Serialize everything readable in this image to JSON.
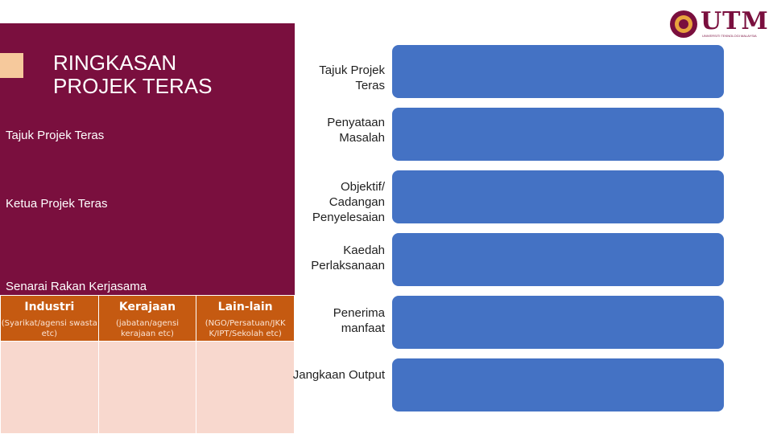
{
  "slide": {
    "title_line1": "RINGKASAN",
    "title_line2": "PROJEK TERAS",
    "project_title_label": "Tajuk Projek Teras",
    "project_lead_label": "Ketua Projek Teras",
    "partners_label": "Senarai Rakan Kerjasama"
  },
  "partners_table": {
    "columns": [
      {
        "heading": "Industri",
        "subtitle": "(Syarikat/agensi swasta etc)"
      },
      {
        "heading": "Kerajaan",
        "subtitle": "(jabatan/agensi kerajaan etc)"
      },
      {
        "heading": "Lain-lain",
        "subtitle": "(NGO/Persatuan/JKK K/IPT/Sekolah etc)"
      }
    ]
  },
  "summary_rows": [
    {
      "label": "Tajuk Projek Teras"
    },
    {
      "label": "Penyataan Masalah"
    },
    {
      "label": "Objektif/ Cadangan Penyelesaian"
    },
    {
      "label": "Kaedah Perlaksanaan"
    },
    {
      "label": "Penerima manfaat"
    },
    {
      "label": "Jangkaan Output"
    }
  ],
  "logo": {
    "text": "UTM",
    "subtitle": "UNIVERSITI TEKNOLOGI MALAYSIA"
  },
  "colors": {
    "maroon": "#7a0f3e",
    "orange_header": "#c55a11",
    "peach_cells": "#f8d8ce",
    "blue_bar": "#4472c4",
    "accent": "#f6c99c"
  }
}
